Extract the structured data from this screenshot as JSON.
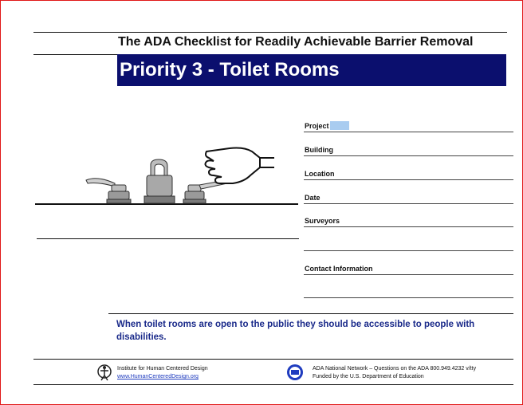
{
  "header": {
    "subtitle": "The ADA Checklist for Readily Achievable Barrier Removal",
    "title": "Priority 3 - Toilet Rooms"
  },
  "form": {
    "fields": [
      {
        "label": "Project"
      },
      {
        "label": "Building"
      },
      {
        "label": "Location"
      },
      {
        "label": "Date"
      },
      {
        "label": "Surveyors"
      },
      {
        "label": "Contact Information"
      }
    ]
  },
  "notice": "When toilet rooms are open to the public they should be accessible to people with disabilities.",
  "footer": {
    "left_org": "Institute for Human Centered  Design",
    "left_link": "www.HumanCenteredDesign.org",
    "right_line1": "ADA National  Network  –  Questions   on the ADA  800.949.4232    v/tty",
    "right_line2": "Funded by the U.S. Department  of Education"
  },
  "colors": {
    "banner_bg": "#0b0f6e",
    "notice_text": "#1a2a8a",
    "frame_border": "#e01818",
    "highlight": "#a9ccf0"
  }
}
